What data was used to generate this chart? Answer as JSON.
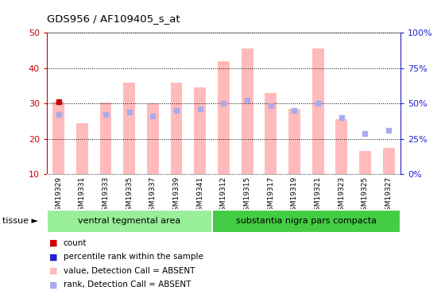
{
  "title": "GDS956 / AF109405_s_at",
  "samples": [
    "GSM19329",
    "GSM19331",
    "GSM19333",
    "GSM19335",
    "GSM19337",
    "GSM19339",
    "GSM19341",
    "GSM19312",
    "GSM19315",
    "GSM19317",
    "GSM19319",
    "GSM19321",
    "GSM19323",
    "GSM19325",
    "GSM19327"
  ],
  "bar_values": [
    30.5,
    24.5,
    30.2,
    36.0,
    30.0,
    36.0,
    34.5,
    42.0,
    45.5,
    33.0,
    28.5,
    45.5,
    25.5,
    16.5,
    17.5
  ],
  "rank_values": [
    27.0,
    null,
    27.0,
    27.5,
    26.5,
    28.0,
    28.5,
    30.0,
    31.0,
    29.5,
    28.0,
    30.0,
    26.0,
    21.5,
    22.5
  ],
  "has_count_dot": [
    true,
    false,
    false,
    false,
    false,
    false,
    false,
    false,
    false,
    false,
    false,
    false,
    false,
    false,
    false
  ],
  "bar_color": "#ffbbbb",
  "rank_color": "#aaaaee",
  "count_color": "#cc0000",
  "ylim_left": [
    10,
    50
  ],
  "ylim_right": [
    0,
    100
  ],
  "yticks_left": [
    10,
    20,
    30,
    40,
    50
  ],
  "ytick_labels_right": [
    "0%",
    "25%",
    "50%",
    "75%",
    "100%"
  ],
  "group1_label": "ventral tegmental area",
  "group2_label": "substantia nigra pars compacta",
  "group1_count": 7,
  "group2_count": 8,
  "xlabel_color": "#cc0000",
  "right_axis_color": "#2222cc",
  "bg_xtick": "#cccccc",
  "bg_group1": "#99ee99",
  "bg_group2": "#44cc44",
  "bar_width": 0.5,
  "legend_items": [
    {
      "label": "count",
      "color": "#cc0000"
    },
    {
      "label": "percentile rank within the sample",
      "color": "#2222cc"
    },
    {
      "label": "value, Detection Call = ABSENT",
      "color": "#ffbbbb"
    },
    {
      "label": "rank, Detection Call = ABSENT",
      "color": "#aaaaee"
    }
  ]
}
